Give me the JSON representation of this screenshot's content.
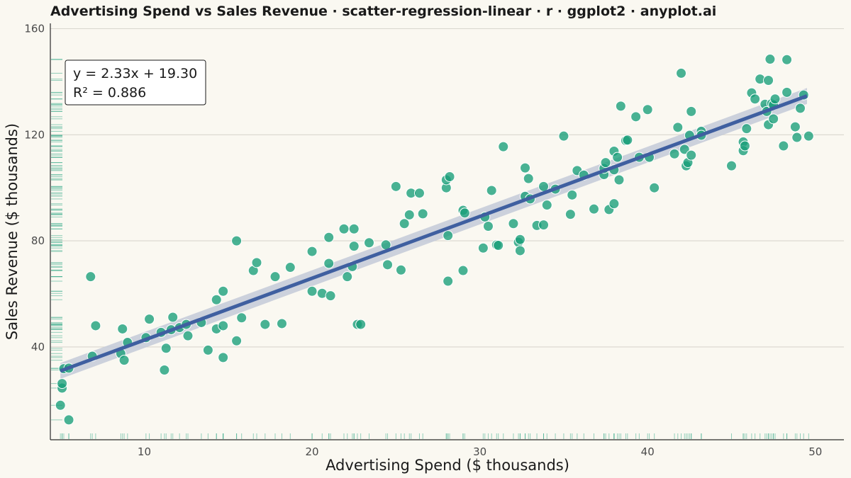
{
  "chart_data": {
    "type": "scatter",
    "title": "Advertising Spend vs Sales Revenue · scatter-regression-linear · r · ggplot2 · anyplot.ai",
    "xlabel": "Advertising Spend ($ thousands)",
    "ylabel": "Sales Revenue ($ thousands)",
    "xlim": [
      4.4,
      51.7
    ],
    "ylim": [
      5,
      162
    ],
    "x_ticks": [
      10,
      20,
      30,
      40,
      50
    ],
    "y_ticks": [
      40,
      80,
      120,
      160
    ],
    "x_tick_labels": [
      "10",
      "20",
      "30",
      "40",
      "50"
    ],
    "y_tick_labels": [
      "40",
      "80",
      "120",
      "160"
    ],
    "grid": "horizontal-major",
    "legend": "none",
    "colors": {
      "background": "#FAF8F1",
      "points": "#179E78",
      "regression_line": "#3F5FA0",
      "confidence_band": "#C3CAD8",
      "rug": "#179E78",
      "grid": "#D9D6CE",
      "axis": "#2b2b2b"
    },
    "regression": {
      "slope": 2.33,
      "intercept": 19.3,
      "r_squared": 0.886,
      "x_range": [
        5,
        49.5
      ],
      "band_halfwidth": 3.0
    },
    "annotation": {
      "line1": "y = 2.33x + 19.30",
      "line2": "R² = 0.886",
      "position": "top-left"
    },
    "points": [
      {
        "x": 5.0,
        "y": 18
      },
      {
        "x": 5.1,
        "y": 24.5
      },
      {
        "x": 5.1,
        "y": 26.2
      },
      {
        "x": 5.2,
        "y": 31.8
      },
      {
        "x": 5.5,
        "y": 32
      },
      {
        "x": 5.5,
        "y": 12.5
      },
      {
        "x": 6.8,
        "y": 66.5
      },
      {
        "x": 6.9,
        "y": 36.5
      },
      {
        "x": 7.1,
        "y": 48
      },
      {
        "x": 8.6,
        "y": 37.5
      },
      {
        "x": 8.7,
        "y": 46.8
      },
      {
        "x": 8.8,
        "y": 35
      },
      {
        "x": 9.0,
        "y": 41.7
      },
      {
        "x": 10.1,
        "y": 43.5
      },
      {
        "x": 10.3,
        "y": 50.5
      },
      {
        "x": 11.0,
        "y": 45.5
      },
      {
        "x": 11.2,
        "y": 31.3
      },
      {
        "x": 11.3,
        "y": 39.5
      },
      {
        "x": 11.6,
        "y": 46.5
      },
      {
        "x": 11.7,
        "y": 51.2
      },
      {
        "x": 12.1,
        "y": 47.3
      },
      {
        "x": 12.5,
        "y": 48.5
      },
      {
        "x": 12.6,
        "y": 44.2
      },
      {
        "x": 13.4,
        "y": 49.2
      },
      {
        "x": 13.8,
        "y": 38.8
      },
      {
        "x": 14.3,
        "y": 46.8
      },
      {
        "x": 14.3,
        "y": 57.8
      },
      {
        "x": 14.7,
        "y": 48
      },
      {
        "x": 14.7,
        "y": 36
      },
      {
        "x": 14.7,
        "y": 61
      },
      {
        "x": 15.5,
        "y": 80
      },
      {
        "x": 15.5,
        "y": 42.3
      },
      {
        "x": 15.8,
        "y": 51
      },
      {
        "x": 16.5,
        "y": 68.8
      },
      {
        "x": 16.7,
        "y": 71.8
      },
      {
        "x": 17.2,
        "y": 48.5
      },
      {
        "x": 17.8,
        "y": 66.5
      },
      {
        "x": 18.2,
        "y": 48.8
      },
      {
        "x": 18.7,
        "y": 70
      },
      {
        "x": 20.0,
        "y": 76
      },
      {
        "x": 20.0,
        "y": 61
      },
      {
        "x": 20.6,
        "y": 60.2
      },
      {
        "x": 21.0,
        "y": 71.5
      },
      {
        "x": 21.0,
        "y": 81.3
      },
      {
        "x": 21.1,
        "y": 59.3
      },
      {
        "x": 21.9,
        "y": 84.5
      },
      {
        "x": 22.1,
        "y": 66.5
      },
      {
        "x": 22.4,
        "y": 70.3
      },
      {
        "x": 22.5,
        "y": 78
      },
      {
        "x": 22.5,
        "y": 84.5
      },
      {
        "x": 22.7,
        "y": 48.5
      },
      {
        "x": 22.9,
        "y": 48.5
      },
      {
        "x": 23.4,
        "y": 79.3
      },
      {
        "x": 24.4,
        "y": 78.5
      },
      {
        "x": 24.5,
        "y": 71
      },
      {
        "x": 25.0,
        "y": 100.5
      },
      {
        "x": 25.3,
        "y": 69
      },
      {
        "x": 25.5,
        "y": 86.5
      },
      {
        "x": 25.8,
        "y": 89.8
      },
      {
        "x": 25.9,
        "y": 98
      },
      {
        "x": 26.4,
        "y": 98
      },
      {
        "x": 26.6,
        "y": 90.2
      },
      {
        "x": 28.0,
        "y": 100
      },
      {
        "x": 28.0,
        "y": 103
      },
      {
        "x": 28.1,
        "y": 64.8
      },
      {
        "x": 28.1,
        "y": 82
      },
      {
        "x": 28.2,
        "y": 104.2
      },
      {
        "x": 29.0,
        "y": 91.5
      },
      {
        "x": 29.0,
        "y": 68.8
      },
      {
        "x": 29.1,
        "y": 90.5
      },
      {
        "x": 30.2,
        "y": 77.3
      },
      {
        "x": 30.3,
        "y": 89
      },
      {
        "x": 30.5,
        "y": 85.5
      },
      {
        "x": 30.7,
        "y": 99
      },
      {
        "x": 31.0,
        "y": 78.5
      },
      {
        "x": 31.1,
        "y": 78.3
      },
      {
        "x": 31.4,
        "y": 115.5
      },
      {
        "x": 32.0,
        "y": 86.5
      },
      {
        "x": 32.3,
        "y": 79.5
      },
      {
        "x": 32.4,
        "y": 80.5
      },
      {
        "x": 32.4,
        "y": 76.3
      },
      {
        "x": 32.7,
        "y": 107.5
      },
      {
        "x": 32.7,
        "y": 96.8
      },
      {
        "x": 32.9,
        "y": 103.5
      },
      {
        "x": 33.0,
        "y": 95.8
      },
      {
        "x": 33.4,
        "y": 85.8
      },
      {
        "x": 33.8,
        "y": 86
      },
      {
        "x": 33.8,
        "y": 100.5
      },
      {
        "x": 34.0,
        "y": 93.5
      },
      {
        "x": 34.5,
        "y": 99.5
      },
      {
        "x": 35.0,
        "y": 119.5
      },
      {
        "x": 35.4,
        "y": 90
      },
      {
        "x": 35.5,
        "y": 97.3
      },
      {
        "x": 35.8,
        "y": 106.5
      },
      {
        "x": 36.2,
        "y": 104.8
      },
      {
        "x": 36.8,
        "y": 92
      },
      {
        "x": 37.4,
        "y": 105
      },
      {
        "x": 37.4,
        "y": 107.3
      },
      {
        "x": 37.5,
        "y": 109.5
      },
      {
        "x": 37.7,
        "y": 91.8
      },
      {
        "x": 38.0,
        "y": 94
      },
      {
        "x": 38.0,
        "y": 106.8
      },
      {
        "x": 38.0,
        "y": 113.8
      },
      {
        "x": 38.2,
        "y": 111.5
      },
      {
        "x": 38.3,
        "y": 103
      },
      {
        "x": 38.4,
        "y": 130.8
      },
      {
        "x": 38.7,
        "y": 117.8
      },
      {
        "x": 38.8,
        "y": 118
      },
      {
        "x": 39.3,
        "y": 126.8
      },
      {
        "x": 39.5,
        "y": 111.5
      },
      {
        "x": 40.0,
        "y": 129.5
      },
      {
        "x": 40.1,
        "y": 111.5
      },
      {
        "x": 40.4,
        "y": 100
      },
      {
        "x": 41.6,
        "y": 112.8
      },
      {
        "x": 41.8,
        "y": 122.8
      },
      {
        "x": 42.0,
        "y": 143.2
      },
      {
        "x": 42.2,
        "y": 114.5
      },
      {
        "x": 42.3,
        "y": 108.3
      },
      {
        "x": 42.4,
        "y": 109.5
      },
      {
        "x": 42.5,
        "y": 119.8
      },
      {
        "x": 42.6,
        "y": 112.3
      },
      {
        "x": 42.6,
        "y": 128.8
      },
      {
        "x": 43.2,
        "y": 121.3
      },
      {
        "x": 43.2,
        "y": 119.8
      },
      {
        "x": 45.0,
        "y": 108.3
      },
      {
        "x": 45.7,
        "y": 117.3
      },
      {
        "x": 45.7,
        "y": 114
      },
      {
        "x": 45.8,
        "y": 115.8
      },
      {
        "x": 45.9,
        "y": 122.3
      },
      {
        "x": 46.2,
        "y": 135.8
      },
      {
        "x": 46.4,
        "y": 133.5
      },
      {
        "x": 46.7,
        "y": 141
      },
      {
        "x": 47.0,
        "y": 131.5
      },
      {
        "x": 47.1,
        "y": 128.8
      },
      {
        "x": 47.2,
        "y": 140.5
      },
      {
        "x": 47.2,
        "y": 123.8
      },
      {
        "x": 47.3,
        "y": 148.5
      },
      {
        "x": 47.4,
        "y": 131.8
      },
      {
        "x": 47.5,
        "y": 126
      },
      {
        "x": 47.5,
        "y": 131.3
      },
      {
        "x": 47.6,
        "y": 133.5
      },
      {
        "x": 48.1,
        "y": 115.8
      },
      {
        "x": 48.3,
        "y": 148.3
      },
      {
        "x": 48.3,
        "y": 136
      },
      {
        "x": 48.8,
        "y": 123
      },
      {
        "x": 48.9,
        "y": 119
      },
      {
        "x": 49.1,
        "y": 130
      },
      {
        "x": 49.3,
        "y": 135
      },
      {
        "x": 49.6,
        "y": 119.5
      }
    ]
  }
}
